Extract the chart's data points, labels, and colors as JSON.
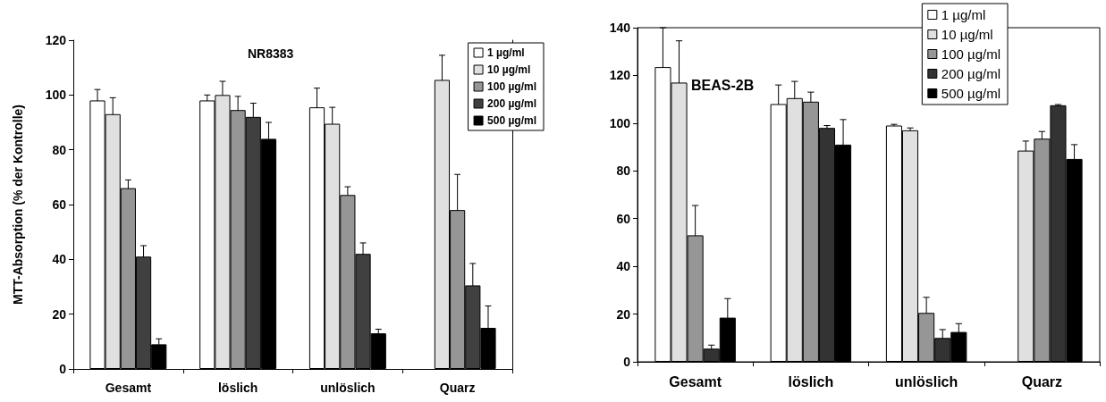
{
  "chart_data": [
    {
      "type": "bar",
      "title": "NR8383",
      "ylabel": "MTT-Absorption (% der Kontrolle)",
      "categories": [
        "Gesamt",
        "löslich",
        "unlöslich",
        "Quarz"
      ],
      "ylim": [
        0,
        120
      ],
      "yticks": [
        0,
        20,
        40,
        60,
        80,
        100,
        120
      ],
      "grid": false,
      "legend": "top right",
      "series": [
        {
          "name": "1 µg/ml",
          "color": "#ffffff",
          "values": [
            98,
            98,
            95.5,
            null
          ],
          "errors": [
            4,
            2,
            7,
            null
          ]
        },
        {
          "name": "10 µg/ml",
          "color": "#e0e0e0",
          "values": [
            93,
            100,
            89.5,
            105.5
          ],
          "errors": [
            6,
            5,
            6,
            9
          ]
        },
        {
          "name": "100 µg/ml",
          "color": "#969696",
          "values": [
            66,
            94.5,
            63.5,
            58
          ],
          "errors": [
            3,
            5,
            3,
            13
          ]
        },
        {
          "name": "200 µg/ml",
          "color": "#404040",
          "values": [
            41,
            92,
            42,
            30.5
          ],
          "errors": [
            4,
            5,
            4,
            8
          ]
        },
        {
          "name": "500 µg/ml",
          "color": "#000000",
          "values": [
            9,
            84,
            13,
            15
          ],
          "errors": [
            2,
            6,
            1.5,
            8
          ]
        }
      ]
    },
    {
      "type": "bar",
      "title": "BEAS-2B",
      "categories": [
        "Gesamt",
        "löslich",
        "unlöslich",
        "Quarz"
      ],
      "ylim": [
        0,
        140
      ],
      "yticks": [
        0,
        20,
        40,
        60,
        80,
        100,
        120,
        140
      ],
      "grid": false,
      "legend": "top right",
      "series": [
        {
          "name": "1 µg/ml",
          "color": "#ffffff",
          "values": [
            123.5,
            108,
            99,
            null
          ],
          "errors": [
            16.5,
            8,
            0.5,
            null
          ]
        },
        {
          "name": "10 µg/ml",
          "color": "#e0e0e0",
          "values": [
            117,
            110.5,
            97,
            88.5
          ],
          "errors": [
            17.5,
            7,
            1,
            4
          ]
        },
        {
          "name": "100 µg/ml",
          "color": "#969696",
          "values": [
            53,
            109,
            20.5,
            93.5
          ],
          "errors": [
            12.5,
            4,
            6.5,
            3
          ]
        },
        {
          "name": "200 µg/ml",
          "color": "#333333",
          "values": [
            5.5,
            98,
            10,
            107.5
          ],
          "errors": [
            1.5,
            1,
            3.5,
            0.3
          ]
        },
        {
          "name": "500 µg/ml",
          "color": "#000000",
          "values": [
            18.5,
            91,
            12.5,
            85
          ],
          "errors": [
            8,
            10.5,
            3.5,
            6
          ]
        }
      ]
    }
  ]
}
